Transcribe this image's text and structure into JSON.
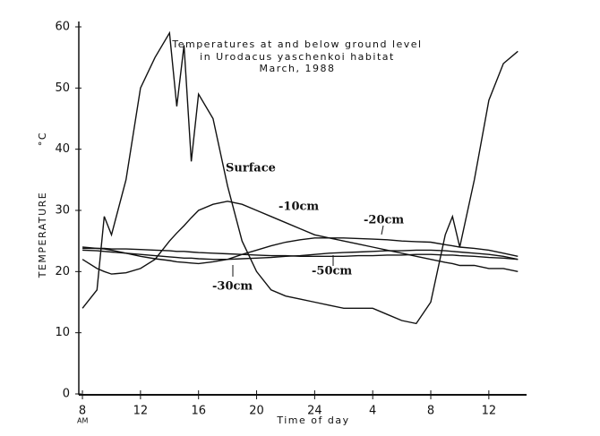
{
  "chart_data": {
    "type": "line",
    "title": [
      "Temperatures at and below ground level",
      "in Urodacus yaschenkoi habitat",
      "March, 1988"
    ],
    "xlabel": "Time of day",
    "ylabel": [
      "TEMPERATURE",
      "°C"
    ],
    "x_note": "AM",
    "x": [
      0,
      1,
      1.5,
      2,
      3,
      4,
      5,
      6,
      6.5,
      7,
      7.5,
      8,
      9,
      10,
      11,
      12,
      13,
      14,
      15,
      16,
      17,
      18,
      19,
      20,
      21,
      22,
      23,
      24,
      25,
      25.5,
      26,
      27,
      28,
      29,
      30
    ],
    "xlim": [
      -0.25,
      30.6
    ],
    "xticks": [
      {
        "value": 0,
        "label": "8"
      },
      {
        "value": 4,
        "label": "12"
      },
      {
        "value": 8,
        "label": "16"
      },
      {
        "value": 12,
        "label": "20"
      },
      {
        "value": 16,
        "label": "24"
      },
      {
        "value": 20,
        "label": "4"
      },
      {
        "value": 24,
        "label": "8"
      },
      {
        "value": 28,
        "label": "12"
      }
    ],
    "ylim": [
      0,
      60
    ],
    "yticks": [
      0,
      10,
      20,
      30,
      40,
      50,
      60
    ],
    "grid": false,
    "series": [
      {
        "name": "Surface",
        "color": "#111111",
        "values": [
          14,
          17,
          29,
          26,
          35,
          50,
          55,
          59,
          47,
          57,
          38,
          49,
          45,
          34,
          25,
          20,
          17,
          16,
          15.5,
          15,
          14.5,
          14,
          14,
          14,
          13,
          12,
          11.5,
          15,
          26,
          29,
          24,
          35,
          48,
          54,
          56
        ]
      },
      {
        "name": "-10cm",
        "color": "#111111",
        "values": [
          22,
          20.5,
          20,
          19.6,
          19.8,
          20.5,
          22,
          25,
          26.3,
          27.5,
          28.8,
          30,
          31,
          31.5,
          31,
          30,
          29,
          28,
          27,
          26,
          25.5,
          25,
          24.5,
          24,
          23.5,
          23,
          22.5,
          22,
          21.5,
          21.3,
          21,
          21,
          20.5,
          20.5,
          20
        ]
      },
      {
        "name": "-20cm",
        "color": "#111111",
        "values": [
          24,
          23.8,
          23.7,
          23.5,
          23,
          22.5,
          22.1,
          21.8,
          21.6,
          21.5,
          21.4,
          21.3,
          21.6,
          22,
          22.8,
          23.5,
          24.2,
          24.8,
          25.2,
          25.5,
          25.5,
          25.5,
          25.4,
          25.3,
          25.2,
          25,
          24.9,
          24.8,
          24.4,
          24.2,
          24,
          23.8,
          23.5,
          23,
          22.5
        ]
      },
      {
        "name": "-30cm",
        "color": "#111111",
        "values": [
          23.5,
          23.4,
          23.3,
          23.2,
          23,
          22.8,
          22.6,
          22.4,
          22.3,
          22.2,
          22.2,
          22.1,
          22,
          22,
          22.1,
          22.2,
          22.3,
          22.5,
          22.6,
          22.8,
          23,
          23.1,
          23.2,
          23.3,
          23.4,
          23.4,
          23.5,
          23.5,
          23.4,
          23.3,
          23.2,
          23,
          22.8,
          22.5,
          22
        ]
      },
      {
        "name": "-50cm",
        "color": "#111111",
        "values": [
          23.8,
          23.8,
          23.8,
          23.7,
          23.7,
          23.6,
          23.5,
          23.4,
          23.3,
          23.3,
          23.2,
          23.1,
          23,
          22.9,
          22.8,
          22.7,
          22.6,
          22.6,
          22.5,
          22.5,
          22.5,
          22.5,
          22.6,
          22.6,
          22.7,
          22.7,
          22.8,
          22.8,
          22.7,
          22.7,
          22.6,
          22.5,
          22.3,
          22.2,
          22
        ]
      }
    ]
  }
}
